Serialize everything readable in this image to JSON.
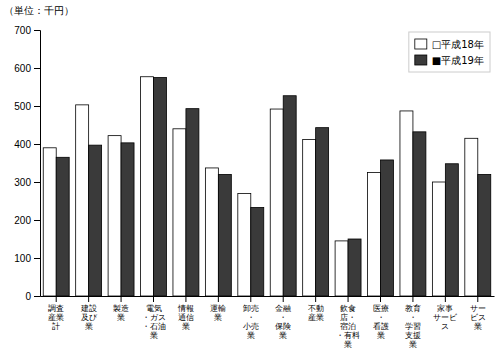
{
  "chart_data": {
    "type": "bar",
    "ylabel": "（単位：千円）",
    "categories": [
      "調査\n産業\n計",
      "建設\n及び\n業",
      "製造\n業",
      "電気\n・ガス\n・石油\n業",
      "情報\n通信\n業",
      "運輸\n業",
      "卸売\n・\n小売\n業",
      "金融\n・\n保険\n業",
      "不動\n産業",
      "飲食\n店・\n宿泊\n・有料\n業",
      "医療\n・\n看護\n業",
      "教育\n・\n学習\n支援\n業",
      "家事\nサービ\nス",
      "サー\nビス\n業"
    ],
    "series": [
      {
        "name": "□平成18年",
        "color": "#ffffff",
        "values": [
          390,
          503,
          422,
          577,
          440,
          337,
          270,
          492,
          412,
          145,
          325,
          487,
          300,
          415
        ]
      },
      {
        "name": "■平成19年",
        "color": "#3a3a3a",
        "values": [
          365,
          397,
          403,
          575,
          493,
          320,
          233,
          527,
          443,
          150,
          358,
          432,
          348,
          320
        ]
      }
    ],
    "ylim": [
      0,
      700
    ],
    "yticks": [
      0,
      100,
      200,
      300,
      400,
      500,
      600,
      700
    ],
    "legend": "upper right",
    "grid": false
  }
}
